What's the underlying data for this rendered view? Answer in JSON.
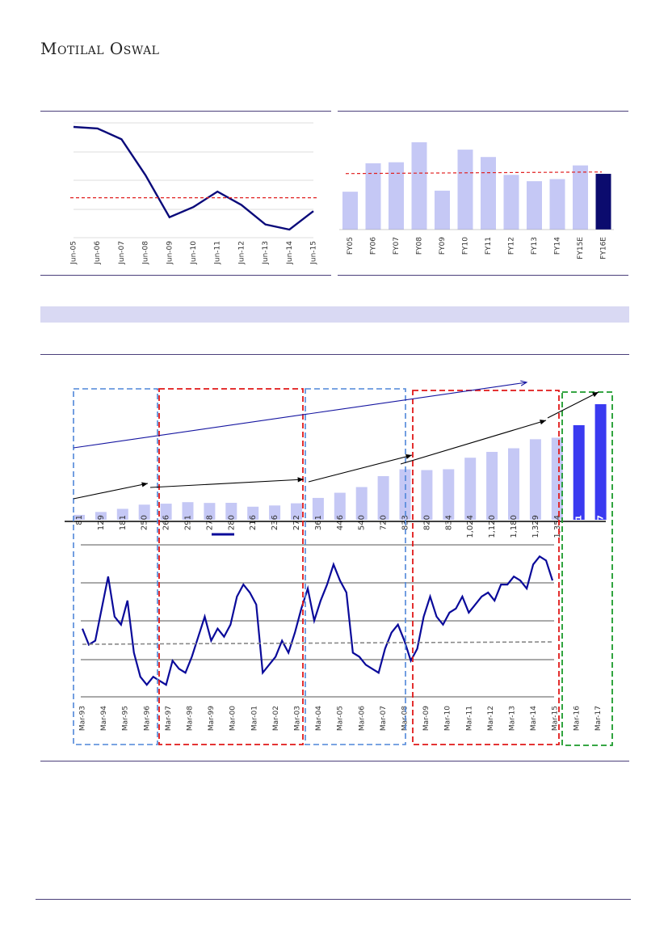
{
  "brand": "Motilal Oswal",
  "chart_data": [
    {
      "type": "line",
      "x": [
        "Jun-05",
        "Jun-06",
        "Jun-07",
        "Jun-08",
        "Jun-09",
        "Jun-10",
        "Jun-11",
        "Jun-12",
        "Jun-13",
        "Jun-14",
        "Jun-15"
      ],
      "values": [
        100,
        98.5,
        88,
        53,
        12,
        22,
        37,
        24,
        5,
        0,
        18
      ],
      "average": 31,
      "colors": {
        "line": "#0a0a7a",
        "avg": "#e02020",
        "grid": "#d0d0d0"
      }
    },
    {
      "type": "bar",
      "categories": [
        "FY05",
        "FY06",
        "FY07",
        "FY08",
        "FY09",
        "FY10",
        "FY11",
        "FY12",
        "FY13",
        "FY14",
        "FY15E",
        "FY16E"
      ],
      "values": [
        36,
        63,
        64,
        83,
        37,
        76,
        69,
        52,
        46,
        48,
        61,
        53
      ],
      "average": 54,
      "colors": {
        "bar": "#c5c8f5",
        "highlight": "#0b0b6e",
        "avg": "#e02020"
      }
    },
    {
      "type": "bar",
      "categories": [
        "Mar-93",
        "Mar-94",
        "Mar-95",
        "Mar-96",
        "Mar-97",
        "Mar-98",
        "Mar-99",
        "Mar-00",
        "Mar-01",
        "Mar-02",
        "Mar-03",
        "Mar-04",
        "Mar-05",
        "Mar-06",
        "Mar-07",
        "Mar-08",
        "Mar-09",
        "Mar-10",
        "Mar-11",
        "Mar-12",
        "Mar-13",
        "Mar-14",
        "Mar-15",
        "Mar-16",
        "Mar-17"
      ],
      "values": [
        81,
        129,
        181,
        250,
        266,
        291,
        278,
        280,
        216,
        236,
        272,
        361,
        446,
        540,
        720,
        833,
        820,
        834,
        1024,
        1120,
        1180,
        1329,
        1354,
        1561,
        1907
      ],
      "labels": [
        "81",
        "129",
        "181",
        "250",
        "266",
        "291",
        "278",
        "280",
        "216",
        "236",
        "272",
        "361",
        "446",
        "540",
        "720",
        "833",
        "820",
        "834",
        "1,024",
        "1,120",
        "1,180",
        "1,329",
        "1,354",
        "1,561",
        "1,907"
      ],
      "colors": {
        "bar": "#c5c8f5",
        "forecast": "#3a3af0"
      }
    },
    {
      "type": "line",
      "x_start": "Mar-93",
      "x_end": "Mar-15",
      "values": [
        17,
        13,
        14,
        22,
        30,
        20,
        18,
        24,
        11,
        5,
        3,
        5,
        4,
        3,
        9,
        7,
        6,
        10,
        15,
        20,
        14,
        17,
        15,
        18,
        25,
        28,
        26,
        23,
        6,
        8,
        10,
        14,
        11,
        16,
        22,
        27,
        19,
        24,
        28,
        33,
        29,
        26,
        11,
        10,
        8,
        7,
        6,
        12,
        16,
        18,
        14,
        9,
        12,
        20,
        25,
        20,
        18,
        21,
        22,
        25,
        21,
        23,
        25,
        26,
        24,
        28,
        28,
        30,
        29,
        27,
        33,
        35,
        34,
        29
      ],
      "average": 13,
      "colors": {
        "line": "#0a0a9a",
        "avg": "#888888",
        "grid": "#555555"
      }
    }
  ]
}
